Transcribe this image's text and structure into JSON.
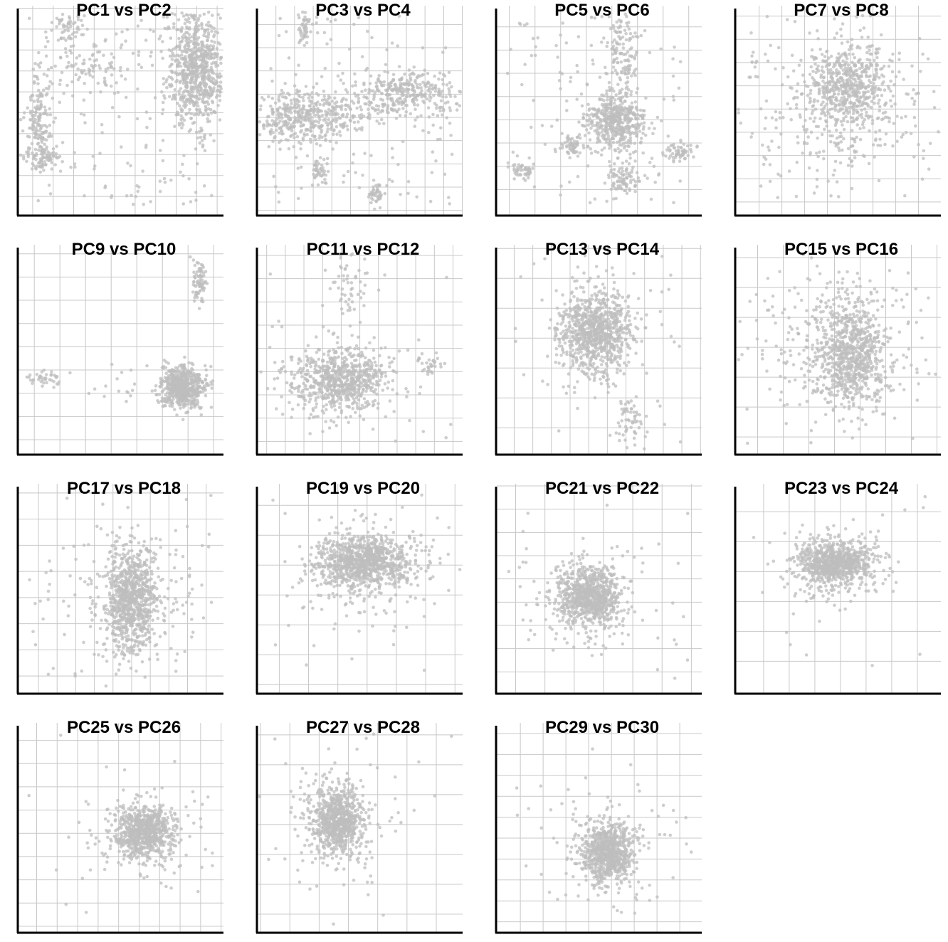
{
  "chart_data": [
    {
      "type": "scatter",
      "title": "PC1 vs PC2",
      "clusters": [
        {
          "cx": 0.87,
          "cy": 0.7,
          "sx": 0.07,
          "sy": 0.13,
          "n": 750
        },
        {
          "cx": 0.1,
          "cy": 0.45,
          "sx": 0.03,
          "sy": 0.1,
          "n": 160
        },
        {
          "cx": 0.12,
          "cy": 0.27,
          "sx": 0.04,
          "sy": 0.03,
          "n": 70
        },
        {
          "cx": 0.25,
          "cy": 0.88,
          "sx": 0.05,
          "sy": 0.04,
          "n": 60
        },
        {
          "cx": 0.35,
          "cy": 0.7,
          "sx": 0.12,
          "sy": 0.05,
          "n": 80
        }
      ],
      "background": {
        "n": 160,
        "x": [
          0.05,
          0.95
        ],
        "y": [
          0.05,
          0.95
        ]
      }
    },
    {
      "type": "scatter",
      "title": "PC3 vs PC4",
      "clusters": [
        {
          "cx": 0.25,
          "cy": 0.47,
          "sx": 0.16,
          "sy": 0.06,
          "n": 460
        },
        {
          "cx": 0.72,
          "cy": 0.58,
          "sx": 0.14,
          "sy": 0.05,
          "n": 320
        },
        {
          "cx": 0.23,
          "cy": 0.9,
          "sx": 0.02,
          "sy": 0.04,
          "n": 50
        },
        {
          "cx": 0.3,
          "cy": 0.2,
          "sx": 0.02,
          "sy": 0.03,
          "n": 40
        },
        {
          "cx": 0.58,
          "cy": 0.1,
          "sx": 0.02,
          "sy": 0.03,
          "n": 40
        }
      ],
      "background": {
        "n": 160,
        "x": [
          0.05,
          0.95
        ],
        "y": [
          0.05,
          0.95
        ]
      }
    },
    {
      "type": "scatter",
      "title": "PC5 vs PC6",
      "clusters": [
        {
          "cx": 0.58,
          "cy": 0.45,
          "sx": 0.07,
          "sy": 0.07,
          "n": 480
        },
        {
          "cx": 0.62,
          "cy": 0.17,
          "sx": 0.04,
          "sy": 0.04,
          "n": 90
        },
        {
          "cx": 0.61,
          "cy": 0.78,
          "sx": 0.04,
          "sy": 0.1,
          "n": 130
        },
        {
          "cx": 0.37,
          "cy": 0.33,
          "sx": 0.03,
          "sy": 0.02,
          "n": 60
        },
        {
          "cx": 0.13,
          "cy": 0.21,
          "sx": 0.03,
          "sy": 0.02,
          "n": 50
        },
        {
          "cx": 0.88,
          "cy": 0.3,
          "sx": 0.04,
          "sy": 0.02,
          "n": 60
        }
      ],
      "background": {
        "n": 120,
        "x": [
          0.05,
          0.95
        ],
        "y": [
          0.05,
          0.95
        ]
      }
    },
    {
      "type": "scatter",
      "title": "PC7 vs PC8",
      "clusters": [
        {
          "cx": 0.55,
          "cy": 0.62,
          "sx": 0.09,
          "sy": 0.1,
          "n": 520
        },
        {
          "cx": 0.5,
          "cy": 0.5,
          "sx": 0.25,
          "sy": 0.18,
          "n": 300
        }
      ],
      "background": {
        "n": 40,
        "x": [
          0.05,
          0.95
        ],
        "y": [
          0.05,
          0.95
        ]
      }
    },
    {
      "type": "scatter",
      "title": "PC9 vs PC10",
      "clusters": [
        {
          "cx": 0.8,
          "cy": 0.32,
          "sx": 0.05,
          "sy": 0.05,
          "n": 650
        },
        {
          "cx": 0.88,
          "cy": 0.83,
          "sx": 0.02,
          "sy": 0.06,
          "n": 80
        },
        {
          "cx": 0.13,
          "cy": 0.36,
          "sx": 0.04,
          "sy": 0.02,
          "n": 40
        }
      ],
      "background": {
        "n": 30,
        "x": [
          0.3,
          0.95
        ],
        "y": [
          0.25,
          0.45
        ]
      }
    },
    {
      "type": "scatter",
      "title": "PC11 vs PC12",
      "clusters": [
        {
          "cx": 0.4,
          "cy": 0.35,
          "sx": 0.12,
          "sy": 0.08,
          "n": 750
        },
        {
          "cx": 0.84,
          "cy": 0.43,
          "sx": 0.03,
          "sy": 0.03,
          "n": 30
        },
        {
          "cx": 0.46,
          "cy": 0.8,
          "sx": 0.04,
          "sy": 0.08,
          "n": 50
        }
      ],
      "background": {
        "n": 40,
        "x": [
          0.05,
          0.95
        ],
        "y": [
          0.05,
          0.95
        ]
      }
    },
    {
      "type": "scatter",
      "title": "PC13 vs PC14",
      "clusters": [
        {
          "cx": 0.48,
          "cy": 0.58,
          "sx": 0.09,
          "sy": 0.1,
          "n": 900
        },
        {
          "cx": 0.65,
          "cy": 0.17,
          "sx": 0.04,
          "sy": 0.06,
          "n": 60
        }
      ],
      "background": {
        "n": 40,
        "x": [
          0.05,
          0.95
        ],
        "y": [
          0.05,
          0.95
        ]
      }
    },
    {
      "type": "scatter",
      "title": "PC15 vs PC16",
      "clusters": [
        {
          "cx": 0.56,
          "cy": 0.48,
          "sx": 0.08,
          "sy": 0.13,
          "n": 700
        },
        {
          "cx": 0.5,
          "cy": 0.5,
          "sx": 0.2,
          "sy": 0.18,
          "n": 300
        }
      ],
      "background": {
        "n": 30,
        "x": [
          0.05,
          0.95
        ],
        "y": [
          0.05,
          0.95
        ]
      }
    },
    {
      "type": "scatter",
      "title": "PC17 vs PC18",
      "clusters": [
        {
          "cx": 0.55,
          "cy": 0.45,
          "sx": 0.06,
          "sy": 0.13,
          "n": 800
        },
        {
          "cx": 0.55,
          "cy": 0.45,
          "sx": 0.18,
          "sy": 0.16,
          "n": 200
        }
      ],
      "background": {
        "n": 30,
        "x": [
          0.05,
          0.95
        ],
        "y": [
          0.05,
          0.95
        ]
      }
    },
    {
      "type": "scatter",
      "title": "PC19 vs PC20",
      "clusters": [
        {
          "cx": 0.52,
          "cy": 0.62,
          "sx": 0.12,
          "sy": 0.06,
          "n": 900
        },
        {
          "cx": 0.52,
          "cy": 0.58,
          "sx": 0.18,
          "sy": 0.12,
          "n": 150
        }
      ],
      "background": {
        "n": 40,
        "x": [
          0.05,
          0.95
        ],
        "y": [
          0.05,
          0.95
        ]
      }
    },
    {
      "type": "scatter",
      "title": "PC21 vs PC22",
      "clusters": [
        {
          "cx": 0.45,
          "cy": 0.46,
          "sx": 0.08,
          "sy": 0.07,
          "n": 800
        },
        {
          "cx": 0.45,
          "cy": 0.46,
          "sx": 0.14,
          "sy": 0.12,
          "n": 100
        }
      ],
      "background": {
        "n": 30,
        "x": [
          0.05,
          0.95
        ],
        "y": [
          0.05,
          0.95
        ]
      }
    },
    {
      "type": "scatter",
      "title": "PC23 vs PC24",
      "clusters": [
        {
          "cx": 0.48,
          "cy": 0.62,
          "sx": 0.09,
          "sy": 0.05,
          "n": 800
        },
        {
          "cx": 0.48,
          "cy": 0.6,
          "sx": 0.14,
          "sy": 0.1,
          "n": 100
        }
      ],
      "background": {
        "n": 20,
        "x": [
          0.05,
          0.95
        ],
        "y": [
          0.05,
          0.95
        ]
      }
    },
    {
      "type": "scatter",
      "title": "PC25 vs PC26",
      "clusters": [
        {
          "cx": 0.61,
          "cy": 0.48,
          "sx": 0.07,
          "sy": 0.06,
          "n": 700
        },
        {
          "cx": 0.61,
          "cy": 0.48,
          "sx": 0.15,
          "sy": 0.12,
          "n": 120
        }
      ],
      "background": {
        "n": 20,
        "x": [
          0.05,
          0.95
        ],
        "y": [
          0.05,
          0.95
        ]
      }
    },
    {
      "type": "scatter",
      "title": "PC27 vs PC28",
      "clusters": [
        {
          "cx": 0.39,
          "cy": 0.54,
          "sx": 0.06,
          "sy": 0.08,
          "n": 700
        },
        {
          "cx": 0.39,
          "cy": 0.52,
          "sx": 0.14,
          "sy": 0.16,
          "n": 150
        }
      ],
      "background": {
        "n": 20,
        "x": [
          0.05,
          0.95
        ],
        "y": [
          0.05,
          0.95
        ]
      }
    },
    {
      "type": "scatter",
      "title": "PC29 vs PC30",
      "clusters": [
        {
          "cx": 0.54,
          "cy": 0.38,
          "sx": 0.06,
          "sy": 0.07,
          "n": 700
        },
        {
          "cx": 0.54,
          "cy": 0.4,
          "sx": 0.14,
          "sy": 0.14,
          "n": 120
        }
      ],
      "background": {
        "n": 20,
        "x": [
          0.05,
          0.95
        ],
        "y": [
          0.05,
          0.95
        ]
      }
    }
  ],
  "style": {
    "point_color": "#bdbdbd",
    "grid_color": "#c8c8c8",
    "axis_color": "#000000",
    "grid_on": true
  }
}
